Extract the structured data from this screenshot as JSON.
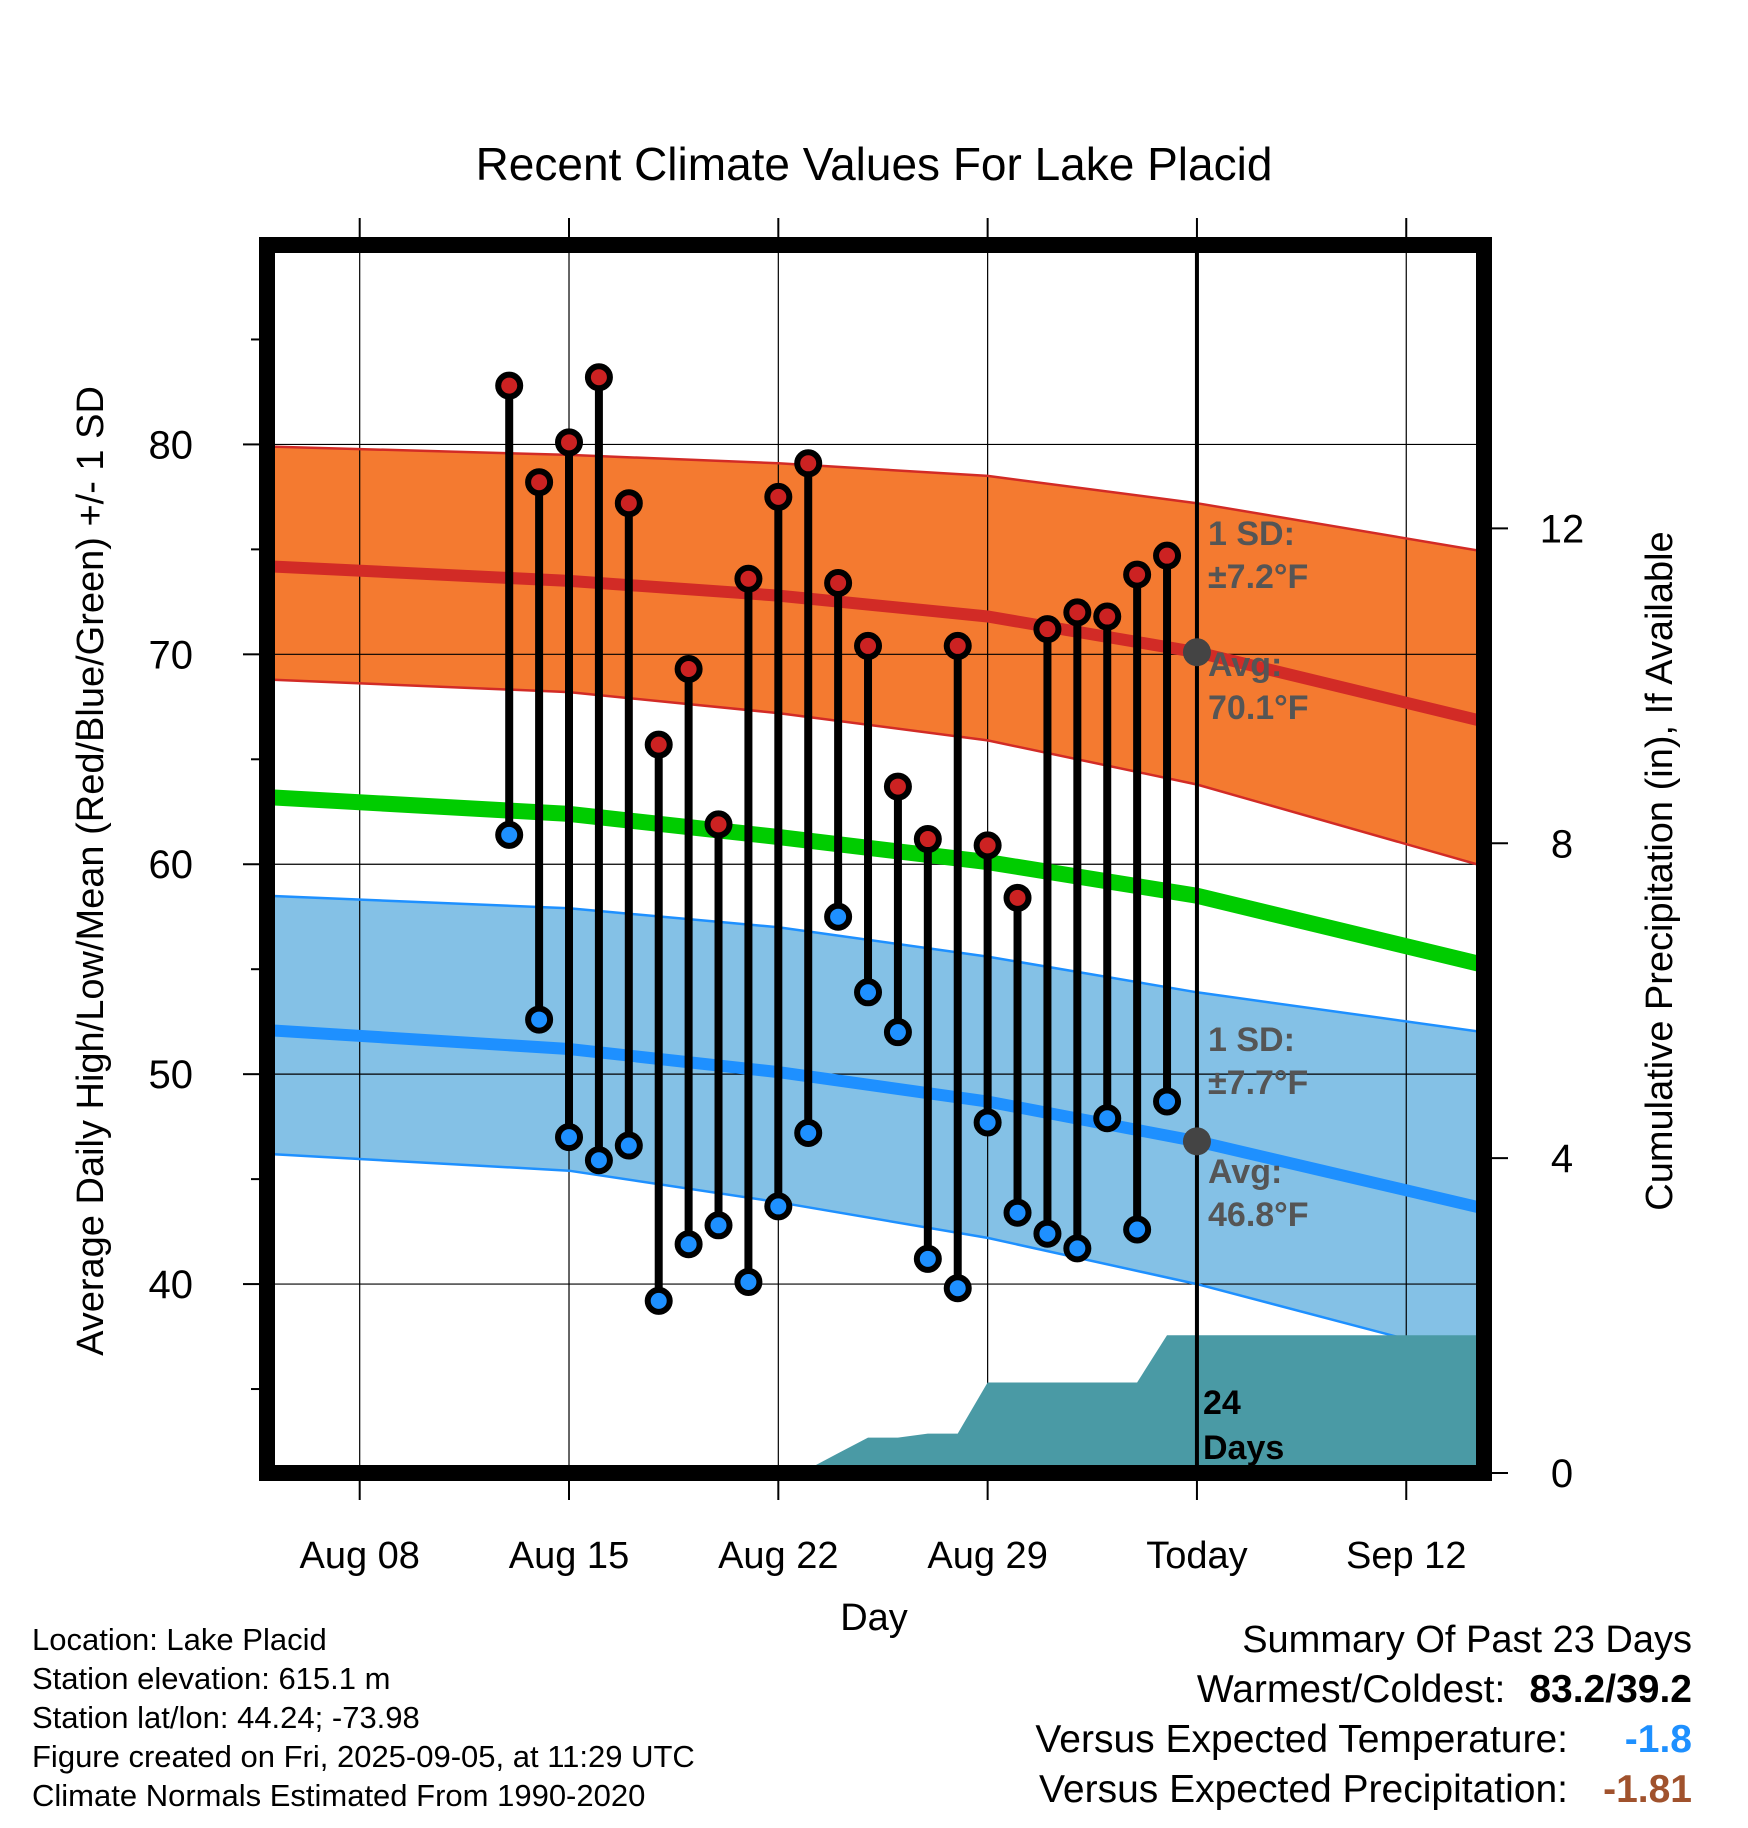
{
  "chart_data": {
    "type": "line",
    "title": "Recent Climate Values For Lake Placid",
    "xlabel": "Day",
    "ylabel": "Average Daily High/Low/Mean (Red/Blue/Green) +/- 1 SD",
    "y2label": "Cumulative Precipitation (in), If Available",
    "x_ticks": [
      "Aug 08",
      "Aug 15",
      "Aug 22",
      "Aug 29",
      "Today",
      "Sep 12"
    ],
    "x_tick_days": [
      8,
      15,
      22,
      29,
      36,
      43
    ],
    "xlim": [
      4.9,
      45.6
    ],
    "ylim": [
      31,
      89.5
    ],
    "y_ticks": [
      40,
      50,
      60,
      70,
      80
    ],
    "y_minor_ticks": [
      35,
      45,
      55,
      65,
      75,
      85
    ],
    "y2lim": [
      0,
      15.6
    ],
    "y2_ticks": [
      0,
      4,
      8,
      12
    ],
    "today_day": 36,
    "grid": true,
    "series": [
      {
        "name": "Average High",
        "color": "#d22b26",
        "x": [
          4.9,
          15,
          22,
          29,
          36,
          45.6
        ],
        "values": [
          74.2,
          73.5,
          72.8,
          71.8,
          70.1,
          66.8
        ]
      },
      {
        "name": "High +1 SD",
        "color": "#d22b26",
        "x": [
          4.9,
          15,
          22,
          29,
          36,
          45.6
        ],
        "values": [
          79.9,
          79.5,
          79.1,
          78.5,
          77.2,
          74.9
        ]
      },
      {
        "name": "High -1 SD",
        "color": "#d22b26",
        "x": [
          4.9,
          15,
          22,
          29,
          36,
          45.6
        ],
        "values": [
          68.8,
          68.2,
          67.2,
          65.9,
          63.8,
          59.9
        ]
      },
      {
        "name": "Average Mean",
        "color": "#00cc00",
        "x": [
          4.9,
          15,
          22,
          29,
          36,
          45.6
        ],
        "values": [
          63.2,
          62.4,
          61.3,
          60.1,
          58.5,
          55.2
        ]
      },
      {
        "name": "Average Low",
        "color": "#1e90ff",
        "x": [
          4.9,
          15,
          22,
          29,
          36,
          45.6
        ],
        "values": [
          52.1,
          51.2,
          50.1,
          48.7,
          46.8,
          43.6
        ]
      },
      {
        "name": "Low +1 SD",
        "color": "#1e90ff",
        "x": [
          4.9,
          15,
          22,
          29,
          36,
          45.6
        ],
        "values": [
          58.5,
          57.9,
          57.0,
          55.6,
          53.9,
          52.0
        ]
      },
      {
        "name": "Low -1 SD",
        "color": "#1e90ff",
        "x": [
          4.9,
          15,
          22,
          29,
          36,
          45.6
        ],
        "values": [
          46.2,
          45.4,
          43.9,
          42.2,
          40.0,
          36.4
        ]
      }
    ],
    "observations": {
      "days": [
        13,
        14,
        15,
        16,
        17,
        18,
        19,
        20,
        21,
        22,
        23,
        24,
        25,
        26,
        27,
        28,
        29,
        30,
        31,
        32,
        33,
        34,
        35
      ],
      "highs": [
        82.8,
        78.2,
        80.1,
        83.2,
        77.2,
        65.7,
        69.3,
        61.9,
        73.6,
        77.5,
        79.1,
        73.4,
        70.4,
        63.7,
        61.2,
        70.4,
        60.9,
        58.4,
        71.2,
        72.0,
        71.8,
        73.8,
        74.7
      ],
      "lows": [
        61.4,
        52.6,
        47.0,
        45.9,
        46.6,
        39.2,
        41.9,
        42.8,
        40.1,
        43.7,
        47.2,
        57.5,
        53.9,
        52.0,
        41.2,
        39.8,
        47.7,
        43.4,
        42.4,
        41.7,
        47.9,
        42.6,
        48.7
      ]
    },
    "precip": {
      "color": "#4a9aa5",
      "x": [
        4.9,
        17,
        18,
        19,
        20,
        21,
        22,
        23,
        24,
        25,
        26,
        27,
        28,
        29,
        30,
        31,
        32,
        33,
        34,
        35,
        36,
        45.6
      ],
      "values": [
        0,
        0,
        0.02,
        0.05,
        0.05,
        0.05,
        0.05,
        0.05,
        0.25,
        0.45,
        0.45,
        0.5,
        0.5,
        1.15,
        1.15,
        1.15,
        1.15,
        1.15,
        1.15,
        1.75,
        1.75,
        1.75
      ]
    },
    "annotations": {
      "high_sd_line1": "1 SD:",
      "high_sd_line2": "±7.2°F",
      "high_avg_line1": "Avg:",
      "high_avg_line2": "70.1°F",
      "low_sd_line1": "1 SD:",
      "low_sd_line2": "±7.7°F",
      "low_avg_line1": "Avg:",
      "low_avg_line2": "46.8°F",
      "days_line1": "24",
      "days_line2": "Days"
    },
    "colors": {
      "high_band": "#f47a30",
      "low_band": "#84c1e6",
      "obs_high": "#cc2222",
      "obs_low": "#1e90ff",
      "today_marker": "#444444",
      "annotation": "#555555"
    }
  },
  "info": {
    "location": "Location: Lake Placid",
    "elevation": "Station elevation: 615.1 m",
    "latlon": "Station lat/lon: 44.24; -73.98",
    "created": "Figure created on Fri, 2025-09-05, at 11:29 UTC",
    "normals": "Climate Normals Estimated From 1990-2020"
  },
  "summary": {
    "title": "Summary Of Past 23 Days",
    "warm_cold_label": "Warmest/Coldest:",
    "warm_cold_value": "83.2/39.2",
    "temp_label": "Versus Expected Temperature:",
    "temp_value": "-1.8",
    "temp_color": "#1e90ff",
    "precip_label": "Versus Expected Precipitation:",
    "precip_value": "-1.81",
    "precip_color": "#a0522d"
  }
}
